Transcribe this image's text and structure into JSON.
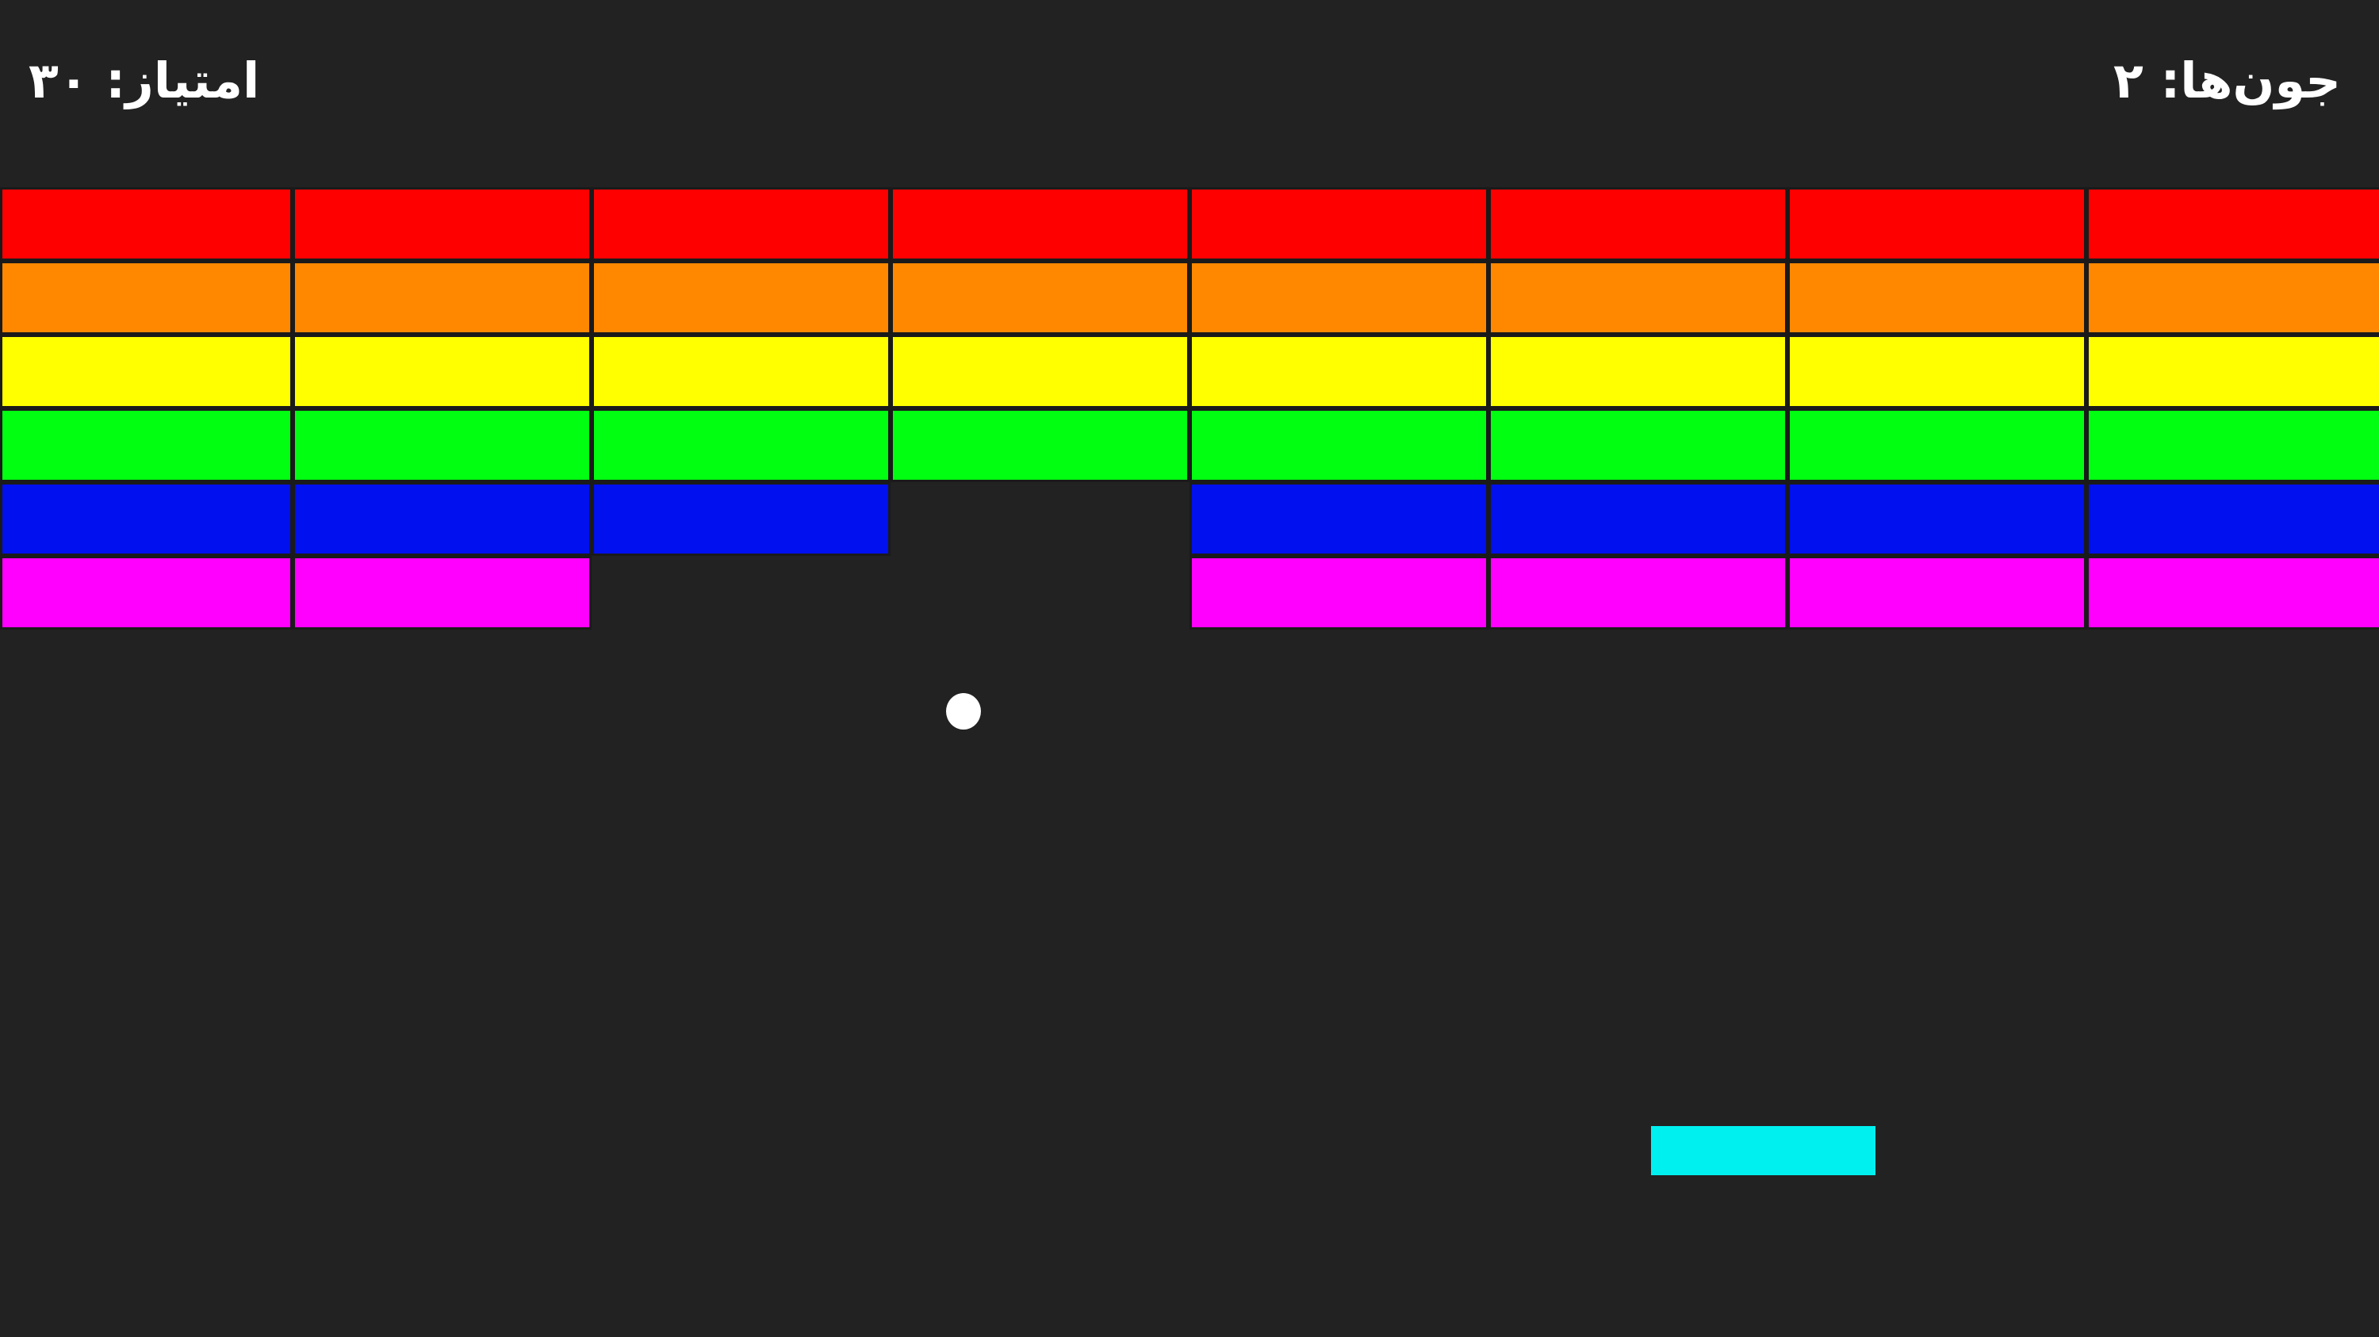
{
  "hud": {
    "score_text": "امتیاز: ۳۰",
    "lives_text": "جون‌ها: ۲"
  },
  "score": 30,
  "lives": 2,
  "brick_rows": [
    {
      "color": "#ff0000",
      "present": [
        true,
        true,
        true,
        true,
        true,
        true,
        true,
        true
      ]
    },
    {
      "color": "#ff8800",
      "present": [
        true,
        true,
        true,
        true,
        true,
        true,
        true,
        true
      ]
    },
    {
      "color": "#ffff00",
      "present": [
        true,
        true,
        true,
        true,
        true,
        true,
        true,
        true
      ]
    },
    {
      "color": "#00ff10",
      "present": [
        true,
        true,
        true,
        true,
        true,
        true,
        true,
        true
      ]
    },
    {
      "color": "#0010ee",
      "present": [
        true,
        true,
        true,
        false,
        true,
        true,
        true,
        true
      ]
    },
    {
      "color": "#ff00ff",
      "present": [
        true,
        true,
        false,
        false,
        true,
        true,
        true,
        true
      ]
    }
  ],
  "colors": {
    "background": "#222222",
    "ball": "#ffffff",
    "paddle": "#00f0f0",
    "text": "#ffffff"
  }
}
